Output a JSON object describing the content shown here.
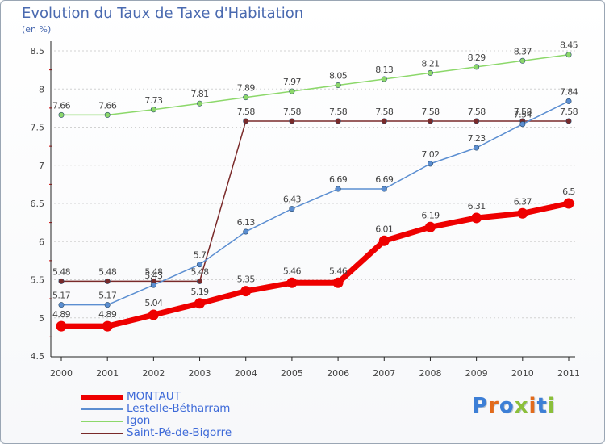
{
  "title": "Evolution du Taux de Taxe d'Habitation",
  "subtitle": "(en %)",
  "logo": "Proxiti",
  "chart_data": {
    "type": "line",
    "ylim": [
      4.5,
      8.5
    ],
    "yticks": [
      "4.5",
      "5",
      "5.5",
      "6",
      "6.5",
      "7",
      "7.5",
      "8",
      "8.5"
    ],
    "x": [
      "2000",
      "2001",
      "2002",
      "2003",
      "2004",
      "2005",
      "2006",
      "2007",
      "2008",
      "2009",
      "2010",
      "2011"
    ],
    "series": [
      {
        "name": "Saint-Pé-de-Bigorre",
        "color": "#7a2a2a",
        "values": [
          5.48,
          5.48,
          5.48,
          5.48,
          7.58,
          7.58,
          7.58,
          7.58,
          7.58,
          7.58,
          7.58,
          7.58
        ]
      },
      {
        "name": "Lestelle-Bétharram",
        "color": "#5b8ed1",
        "values": [
          5.17,
          5.17,
          5.43,
          5.7,
          6.13,
          6.43,
          6.69,
          6.69,
          7.02,
          7.23,
          7.54,
          7.84
        ]
      },
      {
        "name": "Igon",
        "color": "#8cd86a",
        "values": [
          7.66,
          7.66,
          7.73,
          7.81,
          7.89,
          7.97,
          8.05,
          8.13,
          8.21,
          8.29,
          8.37,
          8.45
        ]
      },
      {
        "name": "MONTAUT",
        "color": "#ee0000",
        "values": [
          4.89,
          4.89,
          5.04,
          5.19,
          5.35,
          5.46,
          5.46,
          6.01,
          6.19,
          6.31,
          6.37,
          6.5
        ]
      }
    ],
    "data_labels": {
      "Saint-Pé-de-Bigorre": [
        "5.48",
        "5.48",
        "5.48",
        "5.48",
        "7.58",
        "7.58",
        "7.58",
        "7.58",
        "7.58",
        "7.58",
        "7.58",
        "7.58"
      ],
      "Lestelle-Bétharram": [
        "5.17",
        "5.17",
        "5.43",
        "5.7",
        "6.13",
        "6.43",
        "6.69",
        "6.69",
        "7.02",
        "7.23",
        "7.54",
        "7.84"
      ],
      "Igon": [
        "7.66",
        "7.66",
        "7.73",
        "7.81",
        "7.89",
        "7.97",
        "8.05",
        "8.13",
        "8.21",
        "8.29",
        "8.37",
        "8.45"
      ],
      "MONTAUT": [
        "4.89",
        "4.89",
        "5.04",
        "5.19",
        "5.35",
        "5.46",
        "5.46",
        "6.01",
        "6.19",
        "6.31",
        "6.37",
        "6.5"
      ]
    },
    "legend": [
      {
        "name": "MONTAUT",
        "color": "#ee0000"
      },
      {
        "name": "Lestelle-Bétharram",
        "color": "#5b8ed1"
      },
      {
        "name": "Igon",
        "color": "#8cd86a"
      },
      {
        "name": "Saint-Pé-de-Bigorre",
        "color": "#7a2a2a"
      }
    ],
    "legend_position": "bottom-left",
    "grid": "horizontal dashed"
  }
}
